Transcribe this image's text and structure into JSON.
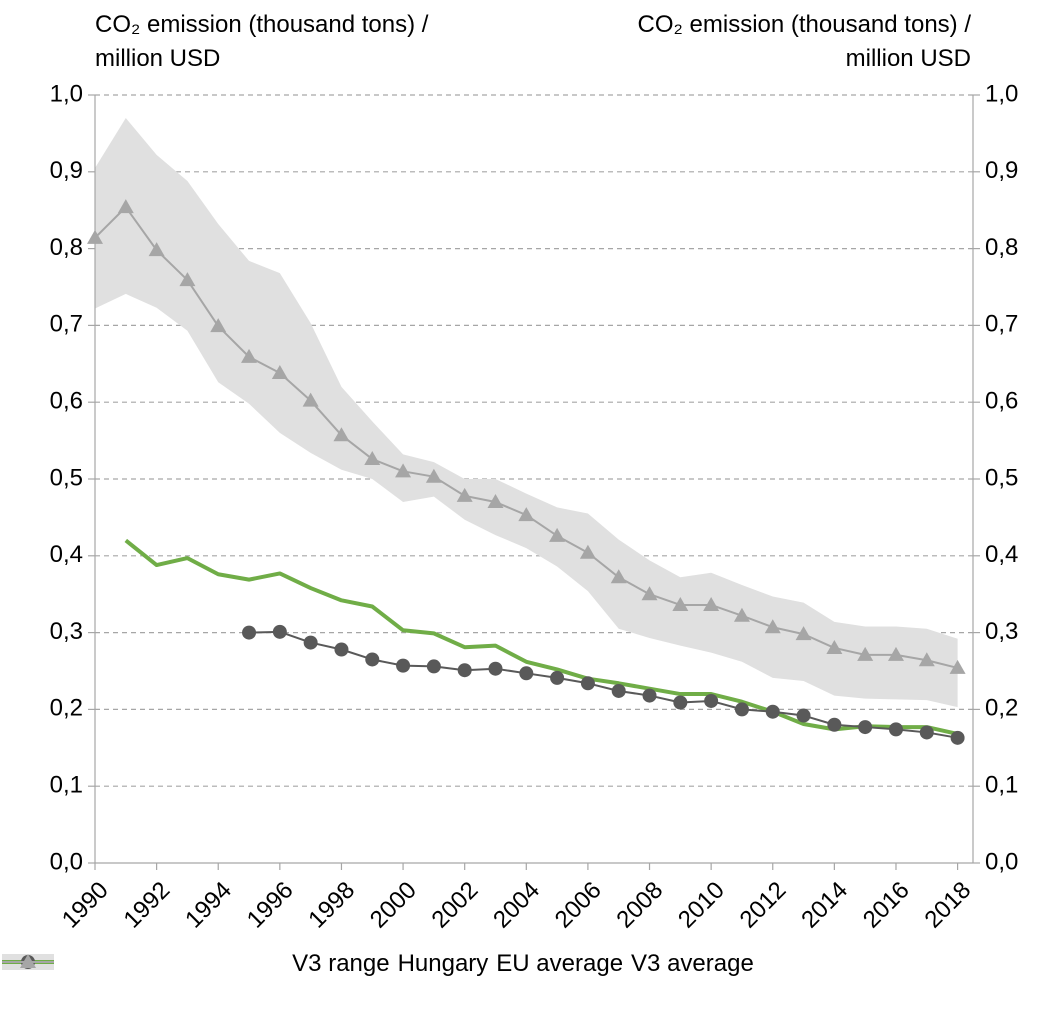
{
  "chart_data": {
    "type": "line",
    "y_label": "CO₂ emission (thousand tons) / million USD",
    "y2_label": "CO₂ emission (thousand tons) / million USD",
    "x": [
      1990,
      1991,
      1992,
      1993,
      1994,
      1995,
      1996,
      1997,
      1998,
      1999,
      2000,
      2001,
      2002,
      2003,
      2004,
      2005,
      2006,
      2007,
      2008,
      2009,
      2010,
      2011,
      2012,
      2013,
      2014,
      2015,
      2016,
      2017,
      2018
    ],
    "xlim": [
      1990,
      2018.5
    ],
    "xticks": [
      1990,
      1992,
      1994,
      1996,
      1998,
      2000,
      2002,
      2004,
      2006,
      2008,
      2010,
      2012,
      2014,
      2016,
      2018
    ],
    "ylim": [
      0,
      1
    ],
    "yticks": [
      {
        "value": 0,
        "label": "0,0"
      },
      {
        "value": 0.1,
        "label": "0,1"
      },
      {
        "value": 0.2,
        "label": "0,2"
      },
      {
        "value": 0.3,
        "label": "0,3"
      },
      {
        "value": 0.4,
        "label": "0,4"
      },
      {
        "value": 0.5,
        "label": "0,5"
      },
      {
        "value": 0.6,
        "label": "0,6"
      },
      {
        "value": 0.7,
        "label": "0,7"
      },
      {
        "value": 0.8,
        "label": "0,8"
      },
      {
        "value": 0.9,
        "label": "0,9"
      },
      {
        "value": 1,
        "label": "1,0"
      }
    ],
    "y2lim": [
      0,
      1
    ],
    "y2ticks": [
      {
        "value": 0,
        "label": "0,0"
      },
      {
        "value": 0.1,
        "label": "0,1"
      },
      {
        "value": 0.2,
        "label": "0,2"
      },
      {
        "value": 0.3,
        "label": "0,3"
      },
      {
        "value": 0.4,
        "label": "0,4"
      },
      {
        "value": 0.5,
        "label": "0,5"
      },
      {
        "value": 0.6,
        "label": "0,6"
      },
      {
        "value": 0.7,
        "label": "0,7"
      },
      {
        "value": 0.8,
        "label": "0,8"
      },
      {
        "value": 0.9,
        "label": "0,9"
      },
      {
        "value": 1,
        "label": "1,0"
      }
    ],
    "grid": true,
    "legend": "bottom",
    "series": [
      {
        "name": "V3 range",
        "type": "range",
        "color": "#e0e0e0",
        "high": [
          0.905,
          0.97,
          0.922,
          0.888,
          0.832,
          0.784,
          0.768,
          0.703,
          0.62,
          0.575,
          0.532,
          0.522,
          0.5,
          0.5,
          0.481,
          0.463,
          0.455,
          0.421,
          0.394,
          0.372,
          0.378,
          0.362,
          0.347,
          0.339,
          0.314,
          0.308,
          0.308,
          0.305,
          0.292
        ],
        "low": [
          0.722,
          0.741,
          0.723,
          0.693,
          0.626,
          0.598,
          0.56,
          0.534,
          0.512,
          0.5,
          0.47,
          0.477,
          0.447,
          0.427,
          0.41,
          0.386,
          0.354,
          0.305,
          0.293,
          0.283,
          0.274,
          0.262,
          0.241,
          0.237,
          0.218,
          0.214,
          0.213,
          0.212,
          0.203
        ]
      },
      {
        "name": "Hungary",
        "type": "line",
        "color": "#70ad47",
        "values": [
          null,
          0.42,
          0.388,
          0.397,
          0.376,
          0.369,
          0.377,
          0.358,
          0.342,
          0.334,
          0.303,
          0.299,
          0.281,
          0.283,
          0.262,
          0.252,
          0.24,
          0.234,
          0.227,
          0.22,
          0.22,
          0.21,
          0.197,
          0.181,
          0.174,
          0.178,
          0.177,
          0.177,
          0.168
        ]
      },
      {
        "name": "EU average",
        "type": "line",
        "marker": "circle",
        "color": "#595959",
        "values": [
          null,
          null,
          null,
          null,
          null,
          0.3,
          0.301,
          0.287,
          0.278,
          0.265,
          0.257,
          0.256,
          0.251,
          0.253,
          0.247,
          0.241,
          0.234,
          0.224,
          0.218,
          0.209,
          0.211,
          0.2,
          0.197,
          0.192,
          0.18,
          0.177,
          0.174,
          0.17,
          0.163
        ]
      },
      {
        "name": "V3 average",
        "type": "line",
        "marker": "triangle",
        "color": "#a6a6a6",
        "values": [
          0.814,
          0.854,
          0.798,
          0.759,
          0.699,
          0.659,
          0.638,
          0.602,
          0.557,
          0.526,
          0.51,
          0.503,
          0.478,
          0.47,
          0.453,
          0.426,
          0.404,
          0.372,
          0.35,
          0.336,
          0.336,
          0.322,
          0.307,
          0.298,
          0.28,
          0.271,
          0.271,
          0.264,
          0.254
        ]
      }
    ]
  }
}
